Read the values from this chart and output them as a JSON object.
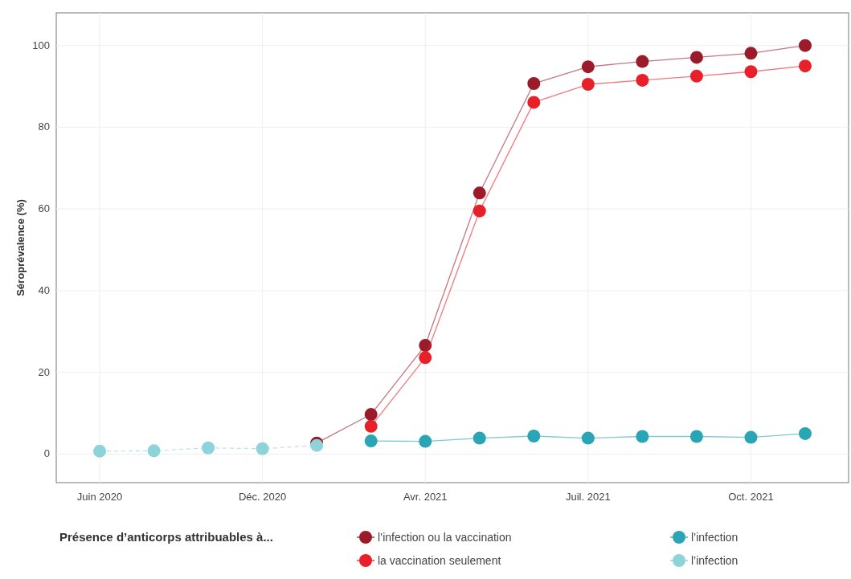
{
  "chart_data": {
    "type": "line",
    "ylabel": "Séroprévalence  (%)",
    "legend_title": "Présence d’anticorps attribuables à...",
    "legend": "bottom",
    "grid": true,
    "marker": "circle",
    "categories": [
      "Juin 2020",
      null,
      null,
      "Déc. 2020",
      null,
      null,
      "Avr. 2021",
      null,
      null,
      "Juil. 2021",
      null,
      null,
      "Oct. 2021",
      null
    ],
    "ylim": [
      -7,
      108
    ],
    "yticks": [
      0,
      20,
      40,
      60,
      80,
      100
    ],
    "series": [
      {
        "name": "l’infection ou la vaccination",
        "color": "#9b1b2a",
        "values": [
          null,
          null,
          null,
          null,
          2.7,
          9.7,
          26.6,
          63.9,
          90.7,
          94.8,
          96.1,
          97.1,
          98.1,
          100
        ]
      },
      {
        "name": "la vaccination seulement",
        "color": "#e8202a",
        "values": [
          null,
          null,
          null,
          null,
          null,
          6.8,
          23.6,
          59.5,
          86.1,
          90.5,
          91.5,
          92.5,
          93.6,
          95
        ]
      },
      {
        "name": "l’infection",
        "color": "#2aa5b5",
        "values": [
          null,
          null,
          null,
          null,
          null,
          3.2,
          3.1,
          3.9,
          4.4,
          3.9,
          4.3,
          4.3,
          4.1,
          5.0
        ]
      },
      {
        "name": "l’infection",
        "color": "#8fd3da",
        "line_style": "dashed",
        "values": [
          0.7,
          0.8,
          1.5,
          1.3,
          2.1,
          null,
          null,
          null,
          null,
          null,
          null,
          null,
          null,
          null
        ]
      }
    ]
  }
}
